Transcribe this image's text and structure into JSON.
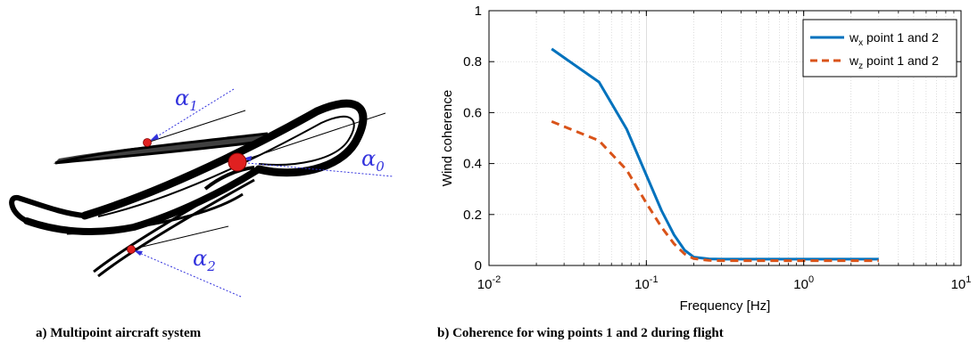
{
  "figure_a": {
    "labels": [
      {
        "id": "alpha1",
        "symbol": "α",
        "sub": "1"
      },
      {
        "id": "alpha0",
        "symbol": "α",
        "sub": "0"
      },
      {
        "id": "alpha2",
        "symbol": "α",
        "sub": "2"
      }
    ],
    "line_color": "#000000",
    "annotation_color": "#3333dd",
    "point_color": "#e02020"
  },
  "captions": {
    "a": "a) Multipoint aircraft system",
    "b": "b) Coherence for wing points 1 and 2 during flight"
  },
  "chart_data": {
    "type": "line",
    "xlabel": "Frequency [Hz]",
    "ylabel": "Wind coherence",
    "xscale": "log",
    "xlim": [
      0.01,
      10
    ],
    "ylim": [
      0,
      1
    ],
    "xticks": [
      {
        "value": 0.01,
        "base": "10",
        "exp": "-2"
      },
      {
        "value": 0.1,
        "base": "10",
        "exp": "-1"
      },
      {
        "value": 1,
        "base": "10",
        "exp": "0"
      },
      {
        "value": 10,
        "base": "10",
        "exp": "1"
      }
    ],
    "yticks": [
      {
        "value": 0,
        "label": "0"
      },
      {
        "value": 0.2,
        "label": "0.2"
      },
      {
        "value": 0.4,
        "label": "0.4"
      },
      {
        "value": 0.6,
        "label": "0.6"
      },
      {
        "value": 0.8,
        "label": "0.8"
      },
      {
        "value": 1,
        "label": "1"
      }
    ],
    "grid": true,
    "legend": "top-right",
    "series": [
      {
        "name": "wx point 1 and 2",
        "legend_main": "w",
        "legend_sub": "x",
        "legend_rest": " point 1 and 2",
        "color": "#0072bd",
        "style": "solid",
        "x": [
          0.025,
          0.05,
          0.075,
          0.1,
          0.125,
          0.15,
          0.175,
          0.2,
          0.25,
          0.3,
          0.5,
          1,
          2,
          3
        ],
        "y": [
          0.85,
          0.72,
          0.535,
          0.355,
          0.215,
          0.12,
          0.06,
          0.033,
          0.026,
          0.025,
          0.025,
          0.025,
          0.025,
          0.025
        ]
      },
      {
        "name": "wz point 1 and 2",
        "legend_main": "w",
        "legend_sub": "z",
        "legend_rest": " point 1 and 2",
        "color": "#d95319",
        "style": "dashed",
        "x": [
          0.025,
          0.05,
          0.075,
          0.1,
          0.125,
          0.15,
          0.175,
          0.2,
          0.25,
          0.3,
          0.5,
          1,
          2,
          3
        ],
        "y": [
          0.565,
          0.49,
          0.375,
          0.245,
          0.15,
          0.085,
          0.045,
          0.027,
          0.02,
          0.019,
          0.019,
          0.019,
          0.019,
          0.019
        ]
      }
    ]
  }
}
